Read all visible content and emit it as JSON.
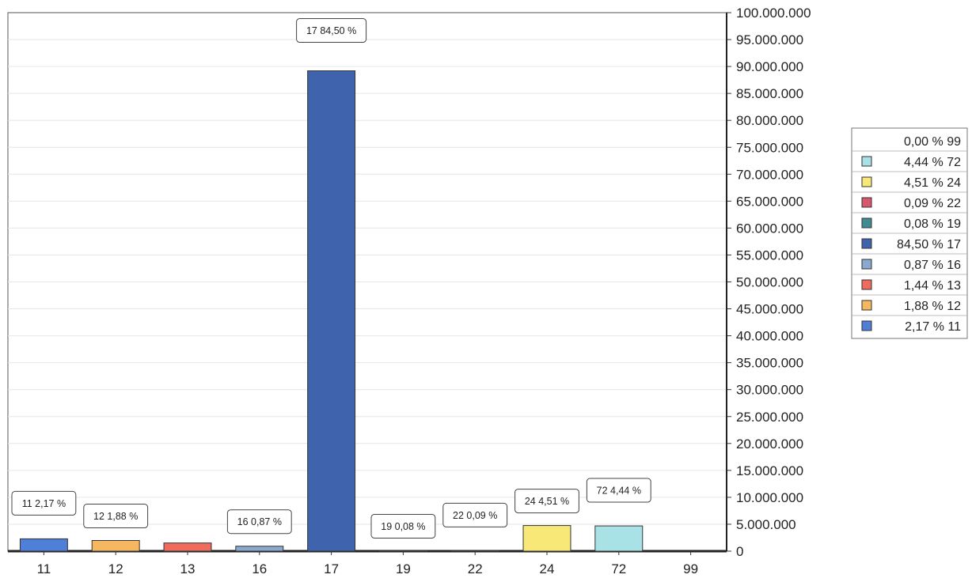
{
  "chart_data": {
    "type": "bar",
    "title": "",
    "xlabel": "",
    "ylabel": "",
    "categories": [
      "11",
      "12",
      "13",
      "16",
      "17",
      "19",
      "22",
      "24",
      "72",
      "99"
    ],
    "values": [
      2290000,
      1980000,
      1520000,
      920000,
      89200000,
      80000,
      90000,
      4760000,
      4690000,
      0
    ],
    "data_labels": [
      "11 2,17 %",
      "12 1,88 %",
      "",
      "16 0,87 %",
      "17 84,50 %",
      "19 0,08 %",
      "22 0,09 %",
      "24 4,51 %",
      "72 4,44 %",
      ""
    ],
    "colors": [
      "#4f7fd6",
      "#f5b860",
      "#ef6b5e",
      "#8aa9cf",
      "#3f63ad",
      "#3f8c92",
      "#d9576e",
      "#f7e878",
      "#a9e2e6",
      "#ffffff"
    ],
    "ylim": [
      0,
      100000000
    ],
    "yticks": [
      0,
      5000000,
      10000000,
      15000000,
      20000000,
      25000000,
      30000000,
      35000000,
      40000000,
      45000000,
      50000000,
      55000000,
      60000000,
      65000000,
      70000000,
      75000000,
      80000000,
      85000000,
      90000000,
      95000000,
      100000000
    ],
    "ytick_labels": [
      "0",
      "5.000.000",
      "10.000.000",
      "15.000.000",
      "20.000.000",
      "25.000.000",
      "30.000.000",
      "35.000.000",
      "40.000.000",
      "45.000.000",
      "50.000.000",
      "55.000.000",
      "60.000.000",
      "65.000.000",
      "70.000.000",
      "75.000.000",
      "80.000.000",
      "85.000.000",
      "90.000.000",
      "95.000.000",
      "100.000.000"
    ],
    "grid": true,
    "y_axis_side": "right",
    "legend_position": "right",
    "legend": [
      {
        "label": "0,00 % 99",
        "color": "#ffffff"
      },
      {
        "label": "4,44 % 72",
        "color": "#a9e2e6"
      },
      {
        "label": "4,51 % 24",
        "color": "#f7e878"
      },
      {
        "label": "0,09 % 22",
        "color": "#d9576e"
      },
      {
        "label": "0,08 % 19",
        "color": "#3f8c92"
      },
      {
        "label": "84,50 % 17",
        "color": "#3f63ad"
      },
      {
        "label": "0,87 % 16",
        "color": "#8aa9cf"
      },
      {
        "label": "1,44 % 13",
        "color": "#ef6b5e"
      },
      {
        "label": "1,88 % 12",
        "color": "#f5b860"
      },
      {
        "label": "2,17 % 11",
        "color": "#4f7fd6"
      }
    ]
  }
}
